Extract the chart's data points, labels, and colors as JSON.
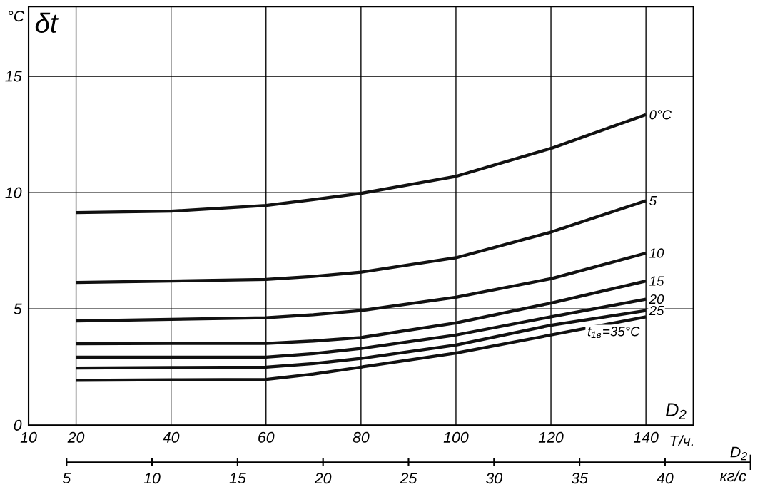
{
  "chart_data": {
    "type": "line",
    "ylabel": "°C",
    "xlabel": "Т/ч.",
    "x2label": "кг/с",
    "annotations": [
      "δt",
      "D$_{2}$",
      "D$_{2}$"
    ],
    "x": [
      20,
      40,
      60,
      70,
      80,
      100,
      120,
      140
    ],
    "series": [
      {
        "name": "0°C",
        "color": "#111111",
        "values": [
          9.14,
          9.2,
          9.45,
          9.7,
          9.97,
          10.7,
          11.9,
          13.35
        ]
      },
      {
        "name": "5",
        "color": "#111111",
        "values": [
          6.14,
          6.2,
          6.27,
          6.4,
          6.58,
          7.2,
          8.3,
          9.65
        ]
      },
      {
        "name": "10",
        "color": "#111111",
        "values": [
          4.48,
          4.55,
          4.62,
          4.75,
          4.93,
          5.5,
          6.3,
          7.4
        ]
      },
      {
        "name": "15",
        "color": "#111111",
        "values": [
          3.5,
          3.52,
          3.52,
          3.62,
          3.77,
          4.4,
          5.25,
          6.2
        ]
      },
      {
        "name": "20",
        "color": "#111111",
        "values": [
          2.93,
          2.93,
          2.93,
          3.08,
          3.3,
          3.88,
          4.66,
          5.42
        ]
      },
      {
        "name": "25",
        "color": "#111111",
        "values": [
          2.46,
          2.48,
          2.5,
          2.65,
          2.87,
          3.45,
          4.3,
          4.93
        ]
      },
      {
        "name": "t$_{1в}$=35°C",
        "color": "#111111",
        "values": [
          1.93,
          1.95,
          1.97,
          2.2,
          2.5,
          3.1,
          3.88,
          4.66
        ]
      }
    ],
    "xlim": [
      10,
      150
    ],
    "ylim": [
      0,
      18
    ],
    "xticks": [
      10,
      20,
      40,
      60,
      80,
      100,
      120,
      140
    ],
    "yticks": [
      0,
      5,
      10,
      15
    ],
    "x2lim": [
      5,
      45
    ],
    "x2ticks": [
      5,
      10,
      15,
      20,
      25,
      30,
      35,
      40
    ],
    "grid": true,
    "marker": "none",
    "line_style": "solid"
  }
}
